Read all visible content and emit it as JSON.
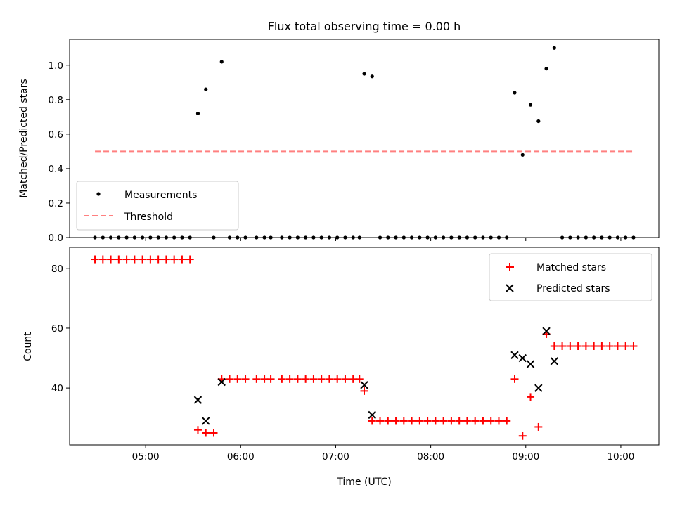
{
  "chart_data": [
    {
      "type": "scatter",
      "title": "Flux total observing time = 0.00 h",
      "xlabel": "",
      "ylabel": "Matched/Predicted stars",
      "xlim": [
        "04:12",
        "10:24"
      ],
      "ylim": [
        0,
        1.15
      ],
      "x_ticks": [
        "05:00",
        "06:00",
        "07:00",
        "08:00",
        "09:00",
        "10:00"
      ],
      "y_ticks": [
        "0.0",
        "0.2",
        "0.4",
        "0.6",
        "0.8",
        "1.0"
      ],
      "y_tick_values": [
        0,
        0.2,
        0.4,
        0.6,
        0.8,
        1.0
      ],
      "legend_position": "lower-left",
      "series": [
        {
          "name": "Measurements",
          "kind": "dots",
          "color": "#000000",
          "points": [
            [
              "04:28",
              0
            ],
            [
              "04:33",
              0
            ],
            [
              "04:38",
              0
            ],
            [
              "04:43",
              0
            ],
            [
              "04:48",
              0
            ],
            [
              "04:53",
              0
            ],
            [
              "04:58",
              0
            ],
            [
              "05:03",
              0
            ],
            [
              "05:08",
              0
            ],
            [
              "05:13",
              0
            ],
            [
              "05:18",
              0
            ],
            [
              "05:23",
              0
            ],
            [
              "05:28",
              0
            ],
            [
              "05:33",
              0.72
            ],
            [
              "05:38",
              0.86
            ],
            [
              "05:43",
              0
            ],
            [
              "05:48",
              1.02
            ],
            [
              "05:53",
              0
            ],
            [
              "05:58",
              0
            ],
            [
              "06:03",
              0
            ],
            [
              "06:10",
              0
            ],
            [
              "06:15",
              0
            ],
            [
              "06:19",
              0
            ],
            [
              "06:26",
              0
            ],
            [
              "06:31",
              0
            ],
            [
              "06:36",
              0
            ],
            [
              "06:41",
              0
            ],
            [
              "06:46",
              0
            ],
            [
              "06:51",
              0
            ],
            [
              "06:56",
              0
            ],
            [
              "07:01",
              0
            ],
            [
              "07:06",
              0
            ],
            [
              "07:11",
              0
            ],
            [
              "07:15",
              0
            ],
            [
              "07:18",
              0.95
            ],
            [
              "07:23",
              0.935
            ],
            [
              "07:28",
              0
            ],
            [
              "07:33",
              0
            ],
            [
              "07:38",
              0
            ],
            [
              "07:43",
              0
            ],
            [
              "07:48",
              0
            ],
            [
              "07:53",
              0
            ],
            [
              "07:58",
              0
            ],
            [
              "08:03",
              0
            ],
            [
              "08:08",
              0
            ],
            [
              "08:13",
              0
            ],
            [
              "08:18",
              0
            ],
            [
              "08:23",
              0
            ],
            [
              "08:28",
              0
            ],
            [
              "08:33",
              0
            ],
            [
              "08:38",
              0
            ],
            [
              "08:43",
              0
            ],
            [
              "08:48",
              0
            ],
            [
              "08:53",
              0.84
            ],
            [
              "08:58",
              0.48
            ],
            [
              "09:03",
              0.77
            ],
            [
              "09:08",
              0.675
            ],
            [
              "09:13",
              0.98
            ],
            [
              "09:18",
              1.1
            ],
            [
              "09:23",
              0
            ],
            [
              "09:28",
              0
            ],
            [
              "09:33",
              0
            ],
            [
              "09:38",
              0
            ],
            [
              "09:43",
              0
            ],
            [
              "09:48",
              0
            ],
            [
              "09:53",
              0
            ],
            [
              "09:58",
              0
            ],
            [
              "10:03",
              0
            ],
            [
              "10:08",
              0
            ]
          ]
        },
        {
          "name": "Threshold",
          "kind": "dashed-line",
          "color": "#ff8080",
          "points": [
            [
              "04:28",
              0.5
            ],
            [
              "10:08",
              0.5
            ]
          ]
        }
      ]
    },
    {
      "type": "scatter",
      "title": "",
      "xlabel": "Time (UTC)",
      "ylabel": "Count",
      "xlim": [
        "04:12",
        "10:24"
      ],
      "ylim": [
        21,
        87
      ],
      "x_ticks": [
        "05:00",
        "06:00",
        "07:00",
        "08:00",
        "09:00",
        "10:00"
      ],
      "y_ticks": [
        "40",
        "60",
        "80"
      ],
      "y_tick_values": [
        40,
        60,
        80
      ],
      "legend_position": "upper-right",
      "series": [
        {
          "name": "Matched stars",
          "kind": "plus",
          "color": "#ff0000",
          "points": [
            [
              "04:28",
              83
            ],
            [
              "04:33",
              83
            ],
            [
              "04:38",
              83
            ],
            [
              "04:43",
              83
            ],
            [
              "04:48",
              83
            ],
            [
              "04:53",
              83
            ],
            [
              "04:58",
              83
            ],
            [
              "05:03",
              83
            ],
            [
              "05:08",
              83
            ],
            [
              "05:13",
              83
            ],
            [
              "05:18",
              83
            ],
            [
              "05:23",
              83
            ],
            [
              "05:28",
              83
            ],
            [
              "05:33",
              26
            ],
            [
              "05:38",
              25
            ],
            [
              "05:43",
              25
            ],
            [
              "05:48",
              43
            ],
            [
              "05:53",
              43
            ],
            [
              "05:58",
              43
            ],
            [
              "06:03",
              43
            ],
            [
              "06:10",
              43
            ],
            [
              "06:15",
              43
            ],
            [
              "06:19",
              43
            ],
            [
              "06:26",
              43
            ],
            [
              "06:31",
              43
            ],
            [
              "06:36",
              43
            ],
            [
              "06:41",
              43
            ],
            [
              "06:46",
              43
            ],
            [
              "06:51",
              43
            ],
            [
              "06:56",
              43
            ],
            [
              "07:01",
              43
            ],
            [
              "07:06",
              43
            ],
            [
              "07:11",
              43
            ],
            [
              "07:15",
              43
            ],
            [
              "07:18",
              39
            ],
            [
              "07:23",
              29
            ],
            [
              "07:28",
              29
            ],
            [
              "07:33",
              29
            ],
            [
              "07:38",
              29
            ],
            [
              "07:43",
              29
            ],
            [
              "07:48",
              29
            ],
            [
              "07:53",
              29
            ],
            [
              "07:58",
              29
            ],
            [
              "08:03",
              29
            ],
            [
              "08:08",
              29
            ],
            [
              "08:13",
              29
            ],
            [
              "08:18",
              29
            ],
            [
              "08:23",
              29
            ],
            [
              "08:28",
              29
            ],
            [
              "08:33",
              29
            ],
            [
              "08:38",
              29
            ],
            [
              "08:43",
              29
            ],
            [
              "08:48",
              29
            ],
            [
              "08:53",
              43
            ],
            [
              "08:58",
              24
            ],
            [
              "09:03",
              37
            ],
            [
              "09:08",
              27
            ],
            [
              "09:13",
              58
            ],
            [
              "09:18",
              54
            ],
            [
              "09:23",
              54
            ],
            [
              "09:28",
              54
            ],
            [
              "09:33",
              54
            ],
            [
              "09:38",
              54
            ],
            [
              "09:43",
              54
            ],
            [
              "09:48",
              54
            ],
            [
              "09:53",
              54
            ],
            [
              "09:58",
              54
            ],
            [
              "10:03",
              54
            ],
            [
              "10:08",
              54
            ]
          ]
        },
        {
          "name": "Predicted stars",
          "kind": "cross",
          "color": "#000000",
          "points": [
            [
              "05:33",
              36
            ],
            [
              "05:38",
              29
            ],
            [
              "05:48",
              42
            ],
            [
              "07:18",
              41
            ],
            [
              "07:23",
              31
            ],
            [
              "08:53",
              51
            ],
            [
              "08:58",
              50
            ],
            [
              "09:03",
              48
            ],
            [
              "09:08",
              40
            ],
            [
              "09:13",
              59
            ],
            [
              "09:18",
              49
            ]
          ]
        }
      ]
    }
  ]
}
